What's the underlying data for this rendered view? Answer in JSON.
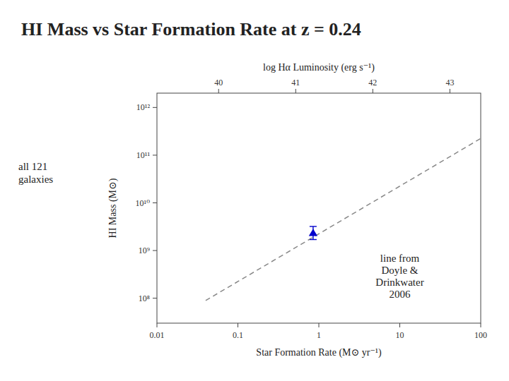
{
  "chart_data": {
    "type": "scatter",
    "title": "HI Mass vs Star Formation Rate at z = 0.24",
    "x_label": "Star Formation Rate (M⊙ yr⁻¹)",
    "y_label": "HI Mass (M⊙)",
    "x2_label": "log Hα Luminosity (erg s⁻¹)",
    "log": true,
    "grid": false,
    "xlim": [
      0.01,
      100
    ],
    "xticks": [
      0.01,
      0.1,
      1,
      10,
      100
    ],
    "ylim": [
      30000000.0,
      2000000000000.0
    ],
    "yticks": [
      {
        "value": 100000000.0,
        "label": "10⁸"
      },
      {
        "value": 1000000000.0,
        "label": "10⁹"
      },
      {
        "value": 10000000000.0,
        "label": "10¹⁰"
      },
      {
        "value": 100000000000.0,
        "label": "10¹¹"
      },
      {
        "value": 1000000000000.0,
        "label": "10¹²"
      }
    ],
    "x2lim": [
      39.2,
      43.4
    ],
    "x2ticks": [
      40,
      41,
      42,
      43
    ],
    "series": [
      {
        "type": "line",
        "color": "#888888",
        "line_style": "dashed",
        "x": [
          0.04,
          100
        ],
        "values": [
          89548845.54273358,
          223872113856.83395
        ]
      },
      {
        "type": "scatter",
        "color": "#0000cc",
        "marker": "triangle",
        "x": [
          0.85
        ],
        "values": [
          2300000000.0
        ],
        "error_up": [
          900000000.0
        ],
        "error_down": [
          600000000.0
        ]
      }
    ],
    "annotations": [
      "line from\nDoyle &\nDrinkwater\n2006",
      "all 121\ngalaxies"
    ]
  }
}
